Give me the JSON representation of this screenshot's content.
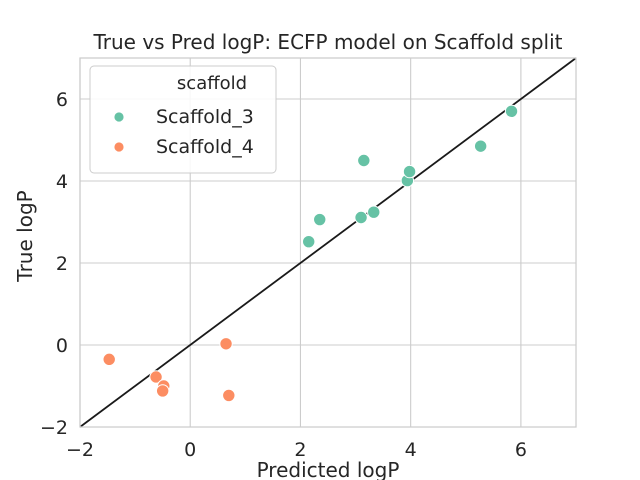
{
  "chart_data": {
    "type": "scatter",
    "title": "True vs Pred logP: ECFP model on Scaffold split",
    "xlabel": "Predicted logP",
    "ylabel": "True logP",
    "xlim": [
      -2,
      7
    ],
    "ylim": [
      -2,
      7
    ],
    "x_ticks": [
      "−2",
      "0",
      "2",
      "4",
      "6"
    ],
    "y_ticks": [
      "−2",
      "0",
      "2",
      "4",
      "6"
    ],
    "x_tick_values": [
      -2,
      0,
      2,
      4,
      6
    ],
    "y_tick_values": [
      -2,
      0,
      2,
      4,
      6
    ],
    "grid": true,
    "identity_line": true,
    "legend": {
      "title": "scaffold",
      "placement": "top-left"
    },
    "series": [
      {
        "name": "Scaffold_3",
        "color": "#66c2a5",
        "points": [
          {
            "x": 2.15,
            "y": 2.52
          },
          {
            "x": 2.35,
            "y": 3.06
          },
          {
            "x": 3.1,
            "y": 3.11
          },
          {
            "x": 3.33,
            "y": 3.24
          },
          {
            "x": 3.15,
            "y": 4.5
          },
          {
            "x": 3.94,
            "y": 4.01
          },
          {
            "x": 3.98,
            "y": 4.23
          },
          {
            "x": 5.27,
            "y": 4.85
          },
          {
            "x": 5.83,
            "y": 5.7
          }
        ]
      },
      {
        "name": "Scaffold_4",
        "color": "#fc8d62",
        "points": [
          {
            "x": -1.47,
            "y": -0.35
          },
          {
            "x": -0.62,
            "y": -0.78
          },
          {
            "x": -0.48,
            "y": -1.0
          },
          {
            "x": -0.5,
            "y": -1.12
          },
          {
            "x": 0.65,
            "y": 0.03
          },
          {
            "x": 0.7,
            "y": -1.23
          }
        ]
      }
    ]
  }
}
